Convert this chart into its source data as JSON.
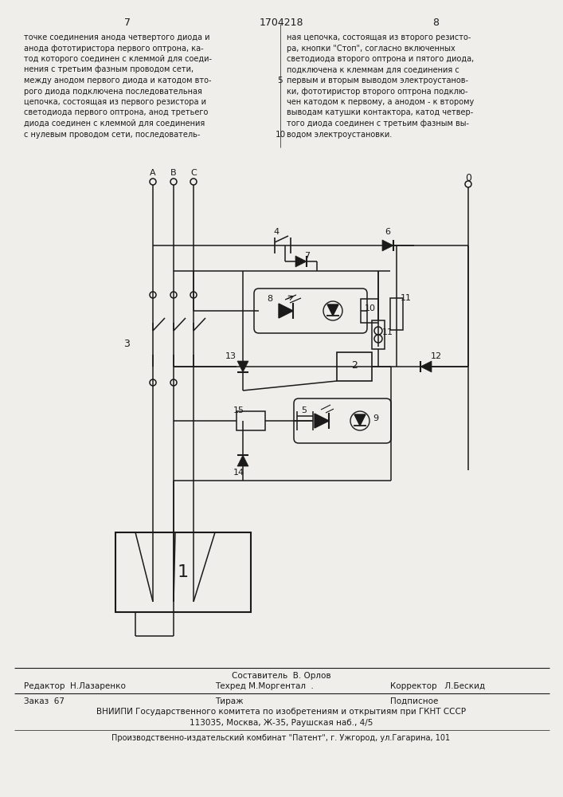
{
  "page_number_left": "7",
  "page_number_center": "1704218",
  "page_number_right": "8",
  "text_left": "точке соединения анода четвертого диода и\nанода фототиристора первого оптрона, ка-\nтод которого соединен с клеммой для соеди-\nнения с третьим фазным проводом сети,\nмежду анодом первого диода и катодом вто-\nрого диода подключена последовательная\nцепочка, состоящая из первого резистора и\nсветодиода первого оптрона, анод третьего\nдиода соединен с клеммой для соединения\nс нулевым проводом сети, последователь-",
  "text_right": "ная цепочка, состоящая из второго резисто-\nра, кнопки \"Стоп\", согласно включенных\nсветодиода второго оптрона и пятого диода,\nподключена к клеммам для соединения с\nпервым и вторым выводом электроустанов-\nки, фототиристор второго оптрона подклю-\nчен катодом к первому, а анодом - к второму\nвыводам катушки контактора, катод четвер-\nтого диода соединен с третьим фазным вы-\nводом электроустановки.",
  "line_number_5": "5",
  "line_number_10": "10",
  "footer_line1_col1": "Составитель  В. Орлов",
  "footer_line2_col1": "Редактор  Н.Лазаренко",
  "footer_line2_col2": "Техред М.Моргентал  .",
  "footer_line2_col3": "Корректор   Л.Бескид",
  "footer_line3_col1": "Заказ  67",
  "footer_line3_col2": "Тираж",
  "footer_line3_col3": "Подписное",
  "footer_line4": "ВНИИПИ Государственного комитета по изобретениям и открытиям при ГКНТ СССР",
  "footer_line5": "113035, Москва, Ж-35, Раушская наб., 4/5",
  "footer_line6": "Производственно-издательский комбинат \"Патент\", г. Ужгород, ул.Гагарина, 101",
  "bg_color": "#f0eeea",
  "line_color": "#1a1a1a",
  "text_color": "#1a1a1a"
}
